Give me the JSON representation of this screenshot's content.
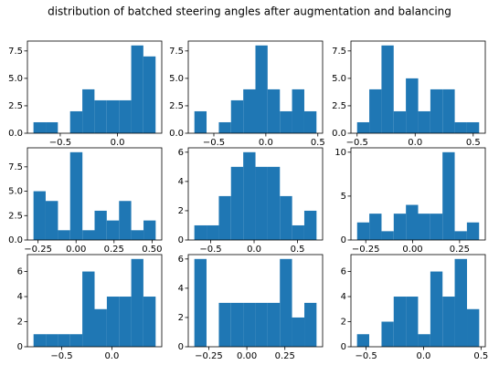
{
  "title": "distribution of batched steering angles after augmentation and balancing",
  "chart_data": [
    {
      "type": "histogram",
      "color": "#1f77b4",
      "bins": [
        -0.734,
        -0.627,
        -0.521,
        -0.414,
        -0.307,
        -0.201,
        -0.094,
        0.013,
        0.12,
        0.226,
        0.333
      ],
      "values": [
        1,
        1,
        0,
        2,
        4,
        3,
        3,
        3,
        8,
        7
      ],
      "xlim": [
        -0.787,
        0.387
      ],
      "xticks": [
        {
          "value": -0.5,
          "label": "−0.5"
        },
        {
          "value": 0,
          "label": "0.0"
        }
      ],
      "ylim": [
        0,
        8.4
      ],
      "yticks": [
        {
          "value": 0,
          "label": "0.0"
        },
        2.5,
        {
          "value": 5,
          "label": "5.0"
        },
        7.5
      ]
    },
    {
      "type": "histogram",
      "color": "#1f77b4",
      "bins": [
        -0.687,
        -0.57,
        -0.452,
        -0.335,
        -0.217,
        -0.1,
        0.017,
        0.135,
        0.252,
        0.37,
        0.487
      ],
      "values": [
        2,
        0,
        1,
        3,
        4,
        8,
        4,
        2,
        4,
        2
      ],
      "xlim": [
        -0.746,
        0.546
      ],
      "xticks": [
        {
          "value": -0.5,
          "label": "−0.5"
        },
        {
          "value": 0,
          "label": "0.0"
        },
        0.5
      ],
      "ylim": [
        0,
        8.4
      ],
      "yticks": [
        {
          "value": 0,
          "label": "0.0"
        },
        2.5,
        {
          "value": 5,
          "label": "5.0"
        },
        7.5
      ]
    },
    {
      "type": "histogram",
      "color": "#1f77b4",
      "bins": [
        -0.5,
        -0.395,
        -0.29,
        -0.185,
        -0.08,
        0.026,
        0.131,
        0.236,
        0.341,
        0.446,
        0.551
      ],
      "values": [
        1,
        4,
        8,
        2,
        5,
        2,
        4,
        4,
        1,
        1
      ],
      "xlim": [
        -0.553,
        0.604
      ],
      "xticks": [
        {
          "value": -0.5,
          "label": "−0.5"
        },
        {
          "value": 0,
          "label": "0.0"
        },
        0.5
      ],
      "ylim": [
        0,
        8.4
      ],
      "yticks": [
        {
          "value": 0,
          "label": "0.0"
        },
        2.5,
        {
          "value": 5,
          "label": "5.0"
        },
        7.5
      ]
    },
    {
      "type": "histogram",
      "color": "#1f77b4",
      "bins": [
        -0.28,
        -0.2,
        -0.119,
        -0.039,
        0.042,
        0.122,
        0.202,
        0.283,
        0.363,
        0.444,
        0.524
      ],
      "values": [
        5,
        4,
        1,
        9,
        1,
        3,
        2,
        4,
        1,
        2
      ],
      "xlim": [
        -0.32,
        0.564
      ],
      "xticks": [
        {
          "value": -0.25,
          "label": "−0.25"
        },
        {
          "value": 0,
          "label": "0.00"
        },
        0.25,
        {
          "value": 0.5,
          "label": "0.50"
        }
      ],
      "ylim": [
        0,
        9.45
      ],
      "yticks": [
        {
          "value": 0,
          "label": "0.0"
        },
        2.5,
        {
          "value": 5,
          "label": "5.0"
        },
        7.5
      ]
    },
    {
      "type": "histogram",
      "color": "#1f77b4",
      "bins": [
        -0.688,
        -0.547,
        -0.406,
        -0.266,
        -0.125,
        0.016,
        0.157,
        0.297,
        0.438,
        0.578,
        0.719
      ],
      "values": [
        1,
        1,
        3,
        5,
        6,
        5,
        5,
        3,
        1,
        2
      ],
      "xlim": [
        -0.758,
        0.789
      ],
      "xticks": [
        {
          "value": -0.5,
          "label": "−0.5"
        },
        {
          "value": 0,
          "label": "0.0"
        },
        0.5
      ],
      "ylim": [
        0,
        6.3
      ],
      "yticks": [
        0,
        2,
        4,
        6
      ]
    },
    {
      "type": "histogram",
      "color": "#1f77b4",
      "bins": [
        -0.296,
        -0.231,
        -0.166,
        -0.101,
        -0.036,
        0.029,
        0.094,
        0.159,
        0.224,
        0.289,
        0.354
      ],
      "values": [
        2,
        3,
        1,
        3,
        4,
        3,
        3,
        10,
        1,
        2
      ],
      "xlim": [
        -0.329,
        0.387
      ],
      "xticks": [
        {
          "value": -0.25,
          "label": "−0.25"
        },
        {
          "value": 0,
          "label": "0.00"
        },
        0.25
      ],
      "ylim": [
        0,
        10.5
      ],
      "yticks": [
        0,
        5,
        10
      ]
    },
    {
      "type": "histogram",
      "color": "#1f77b4",
      "bins": [
        -0.78,
        -0.658,
        -0.537,
        -0.415,
        -0.294,
        -0.172,
        -0.05,
        0.071,
        0.193,
        0.314,
        0.436
      ],
      "values": [
        1,
        1,
        1,
        1,
        6,
        3,
        4,
        4,
        7,
        4
      ],
      "xlim": [
        -0.841,
        0.497
      ],
      "xticks": [
        {
          "value": -0.5,
          "label": "−0.5"
        },
        {
          "value": 0,
          "label": "0.0"
        }
      ],
      "ylim": [
        0,
        7.35
      ],
      "yticks": [
        0,
        2,
        4,
        6
      ]
    },
    {
      "type": "histogram",
      "color": "#1f77b4",
      "bins": [
        -0.345,
        -0.265,
        -0.184,
        -0.104,
        -0.024,
        0.057,
        0.137,
        0.217,
        0.297,
        0.378,
        0.458
      ],
      "values": [
        6,
        0,
        3,
        3,
        3,
        3,
        3,
        6,
        2,
        3
      ],
      "xlim": [
        -0.385,
        0.498
      ],
      "xticks": [
        {
          "value": -0.25,
          "label": "−0.25"
        },
        {
          "value": 0,
          "label": "0.00"
        },
        0.25
      ],
      "ylim": [
        0,
        6.3
      ],
      "yticks": [
        0,
        2,
        4,
        6
      ]
    },
    {
      "type": "histogram",
      "color": "#1f77b4",
      "bins": [
        -0.579,
        -0.473,
        -0.366,
        -0.26,
        -0.154,
        -0.048,
        0.059,
        0.165,
        0.271,
        0.378,
        0.484
      ],
      "values": [
        1,
        0,
        2,
        4,
        4,
        1,
        6,
        4,
        7,
        3
      ],
      "xlim": [
        -0.632,
        0.537
      ],
      "xticks": [
        {
          "value": -0.5,
          "label": "−0.5"
        },
        {
          "value": 0,
          "label": "0.0"
        },
        0.5
      ],
      "ylim": [
        0,
        7.35
      ],
      "yticks": [
        0,
        2,
        4,
        6
      ]
    }
  ]
}
